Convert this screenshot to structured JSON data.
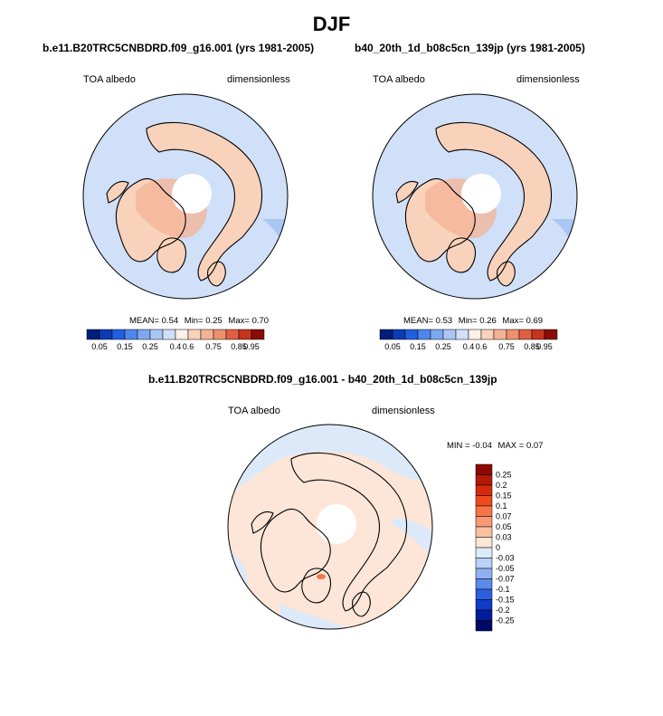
{
  "figure_title": "DJF",
  "panels": [
    {
      "title": "b.e11.B20TRC5CNBDRD.f09_g16.001 (yrs 1981-2005)",
      "variable": "TOA albedo",
      "units": "dimensionless",
      "stats": {
        "mean_label": "MEAN=",
        "mean": "0.54",
        "min_label": "Min=",
        "min": "0.25",
        "max_label": "Max=",
        "max": "0.70"
      }
    },
    {
      "title": "b40_20th_1d_b08c5cn_139jp (yrs 1981-2005)",
      "variable": "TOA albedo",
      "units": "dimensionless",
      "stats": {
        "mean_label": "MEAN=",
        "mean": "0.53",
        "min_label": "Min=",
        "min": "0.26",
        "max_label": "Max=",
        "max": "0.69"
      }
    }
  ],
  "diff_panel": {
    "title": "b.e11.B20TRC5CNBDRD.f09_g16.001 - b40_20th_1d_b08c5cn_139jp",
    "variable": "TOA albedo",
    "units": "dimensionless",
    "stats": {
      "min_label": "MIN =",
      "min": "-0.04",
      "max_label": "MAX =",
      "max": "0.07"
    }
  },
  "colorbar_main": {
    "ticks": [
      "0.05",
      "0.15",
      "0.25",
      "0.4",
      "0.6",
      "0.75",
      "0.85",
      "0.95"
    ],
    "colors": [
      "#001f7a",
      "#0a3cb5",
      "#2060e0",
      "#4f86ee",
      "#7fa8f2",
      "#aac6f5",
      "#cfe0f8",
      "#fdf1e8",
      "#f9d2bb",
      "#f4b394",
      "#ee8f6d",
      "#e05f43",
      "#c5341f",
      "#8c0c07"
    ]
  },
  "colorbar_diff": {
    "labels": [
      "0.25",
      "0.2",
      "0.15",
      "0.1",
      "0.07",
      "0.05",
      "0.03",
      "0",
      "-0.03",
      "-0.05",
      "-0.07",
      "-0.1",
      "-0.15",
      "-0.2",
      "-0.25"
    ],
    "colors": [
      "#8c0a05",
      "#b41807",
      "#d72a0d",
      "#ee4a1f",
      "#f67448",
      "#f79a74",
      "#f9c1a1",
      "#fde6d8",
      "#dce9f9",
      "#bad1f6",
      "#8fb1f1",
      "#5c8aeb",
      "#2c5fe0",
      "#0f3bc8",
      "#031c9a",
      "#000a66"
    ]
  },
  "map_colors": {
    "ocean_ice": "#cfe0f8",
    "ocean_low": "#aac6f5",
    "ocean_lower": "#7fa8f2",
    "land_warm": "#f9d2bb",
    "land_mid": "#f4b394",
    "pole_hole": "#ffffff",
    "diff_pos": "#fde6d8",
    "diff_neg": "#dce9f9",
    "diff_hot": "#f67448"
  }
}
